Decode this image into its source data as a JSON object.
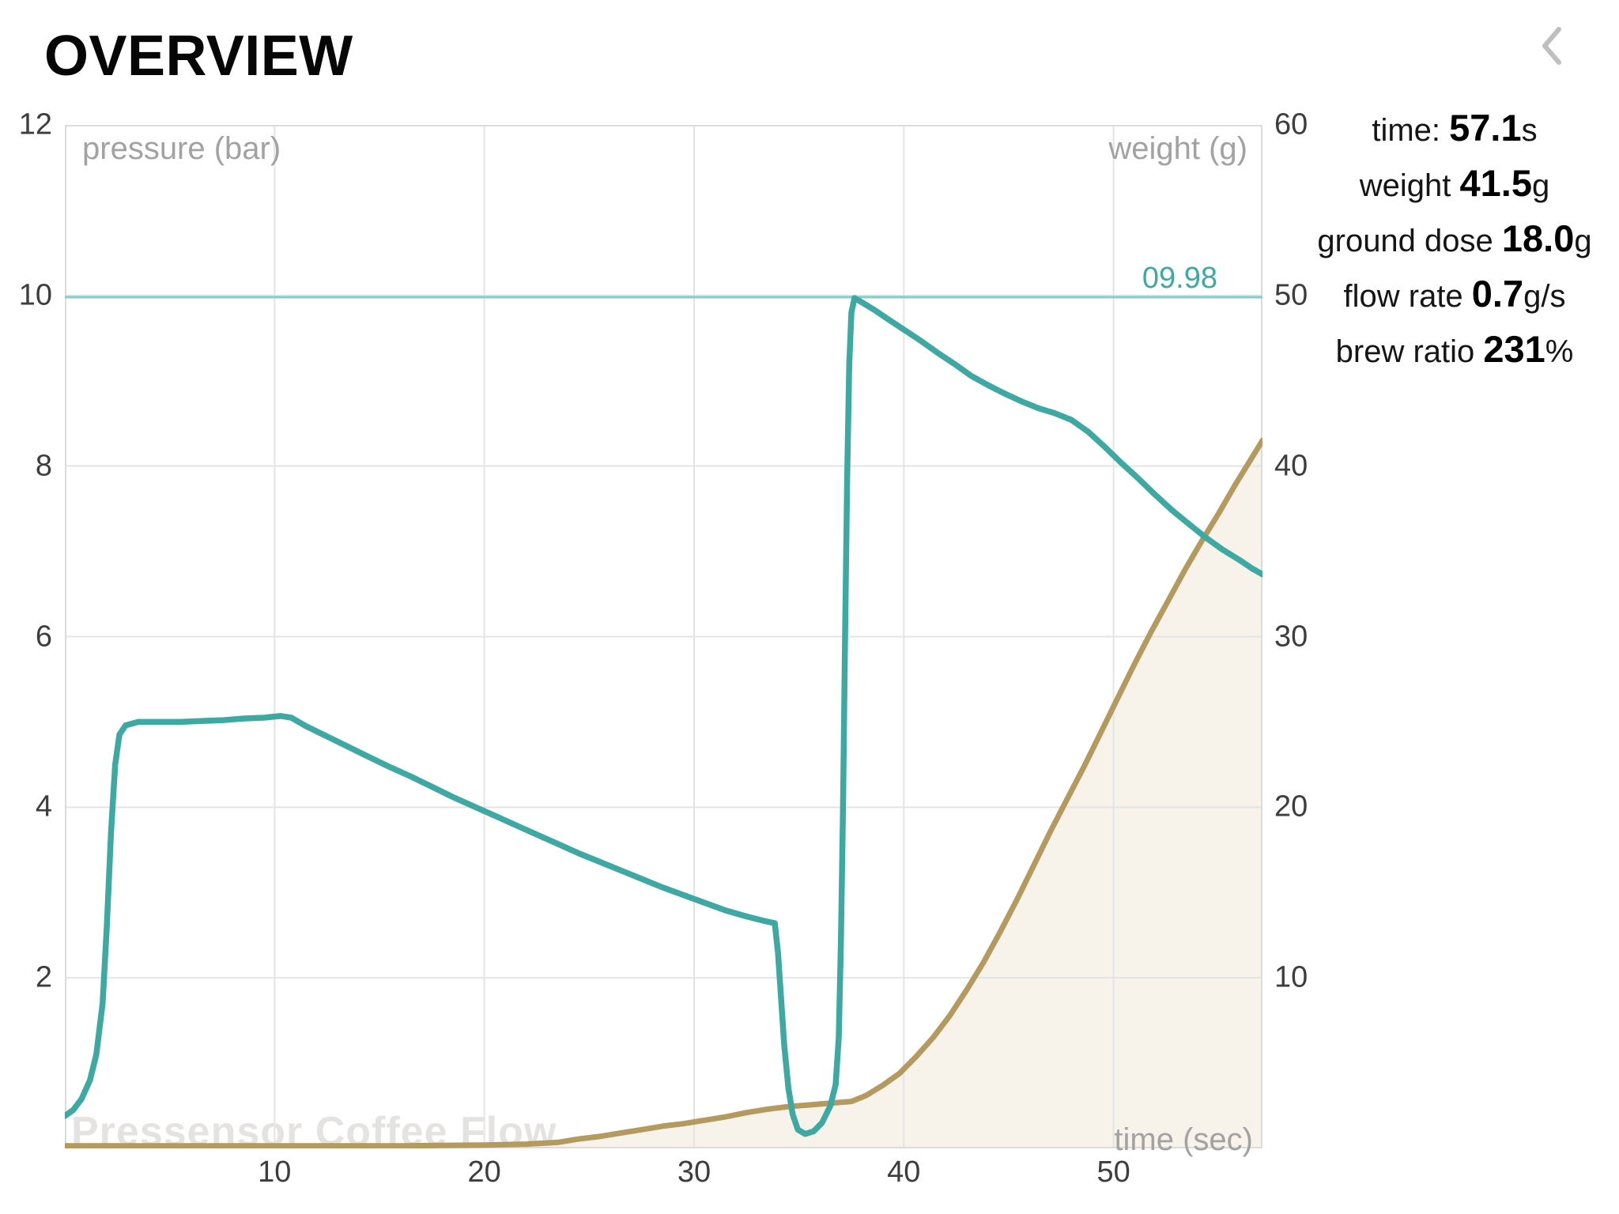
{
  "header": {
    "title": "OVERVIEW",
    "back_icon": "chevron-left"
  },
  "stats": {
    "lines": [
      {
        "label": "time: ",
        "value": "57.1",
        "unit": "s"
      },
      {
        "label": "weight ",
        "value": "41.5",
        "unit": "g"
      },
      {
        "label": "ground dose ",
        "value": "18.0",
        "unit": "g"
      },
      {
        "label": "flow rate ",
        "value": "0.7",
        "unit": "g/s"
      },
      {
        "label": "brew ratio ",
        "value": "231",
        "unit": "%"
      }
    ]
  },
  "chart_data": {
    "type": "line",
    "watermark": "Pressensor Coffee Flow",
    "x_axis": {
      "title": "time (sec)",
      "min": 0,
      "max": 57.1,
      "ticks": [
        10,
        20,
        30,
        40,
        50
      ]
    },
    "y_left": {
      "title": "pressure (bar)",
      "min": 0,
      "max": 12,
      "ticks": [
        12,
        10,
        8,
        6,
        4,
        2
      ]
    },
    "y_right": {
      "title": "weight (g)",
      "min": 0,
      "max": 60,
      "ticks": [
        60,
        50,
        40,
        30,
        20,
        10
      ]
    },
    "reference_line": {
      "axis": "left",
      "value": 9.98,
      "label": "09.98",
      "color": "#84CDC9",
      "label_color": "#3EA9A3"
    },
    "grid_color": "#E4E4E4",
    "border_color": "#DBDBDB",
    "series": [
      {
        "name": "pressure",
        "axis": "left",
        "color": "#3EA9A3",
        "points": [
          [
            0,
            0.38
          ],
          [
            0.4,
            0.45
          ],
          [
            0.8,
            0.58
          ],
          [
            1.2,
            0.8
          ],
          [
            1.5,
            1.1
          ],
          [
            1.8,
            1.7
          ],
          [
            2.0,
            2.6
          ],
          [
            2.2,
            3.7
          ],
          [
            2.4,
            4.5
          ],
          [
            2.6,
            4.85
          ],
          [
            2.9,
            4.96
          ],
          [
            3.5,
            5.0
          ],
          [
            4.5,
            5.0
          ],
          [
            5.5,
            5.0
          ],
          [
            6.5,
            5.01
          ],
          [
            7.5,
            5.02
          ],
          [
            8.5,
            5.04
          ],
          [
            9.5,
            5.05
          ],
          [
            10.3,
            5.07
          ],
          [
            10.8,
            5.05
          ],
          [
            11.5,
            4.95
          ],
          [
            12.5,
            4.83
          ],
          [
            13.5,
            4.71
          ],
          [
            14.5,
            4.59
          ],
          [
            15.5,
            4.47
          ],
          [
            16.5,
            4.36
          ],
          [
            17.5,
            4.24
          ],
          [
            18.5,
            4.12
          ],
          [
            19.5,
            4.01
          ],
          [
            20.5,
            3.9
          ],
          [
            21.5,
            3.79
          ],
          [
            22.5,
            3.68
          ],
          [
            23.5,
            3.57
          ],
          [
            24.5,
            3.46
          ],
          [
            25.5,
            3.36
          ],
          [
            26.5,
            3.26
          ],
          [
            27.5,
            3.16
          ],
          [
            28.5,
            3.06
          ],
          [
            29.5,
            2.97
          ],
          [
            30.5,
            2.88
          ],
          [
            31.5,
            2.79
          ],
          [
            32.5,
            2.72
          ],
          [
            33.3,
            2.67
          ],
          [
            33.85,
            2.64
          ],
          [
            34.0,
            2.3
          ],
          [
            34.15,
            1.75
          ],
          [
            34.3,
            1.2
          ],
          [
            34.5,
            0.7
          ],
          [
            34.7,
            0.4
          ],
          [
            34.95,
            0.22
          ],
          [
            35.3,
            0.17
          ],
          [
            35.7,
            0.2
          ],
          [
            36.1,
            0.3
          ],
          [
            36.5,
            0.5
          ],
          [
            36.75,
            0.75
          ],
          [
            36.9,
            1.3
          ],
          [
            37.0,
            2.4
          ],
          [
            37.1,
            4.0
          ],
          [
            37.2,
            6.0
          ],
          [
            37.3,
            7.9
          ],
          [
            37.4,
            9.2
          ],
          [
            37.5,
            9.8
          ],
          [
            37.65,
            9.97
          ],
          [
            38.0,
            9.92
          ],
          [
            38.6,
            9.83
          ],
          [
            39.2,
            9.73
          ],
          [
            40.0,
            9.6
          ],
          [
            40.8,
            9.47
          ],
          [
            41.6,
            9.33
          ],
          [
            42.4,
            9.2
          ],
          [
            43.2,
            9.06
          ],
          [
            44.0,
            8.95
          ],
          [
            44.8,
            8.85
          ],
          [
            45.6,
            8.76
          ],
          [
            46.4,
            8.68
          ],
          [
            47.2,
            8.62
          ],
          [
            48.0,
            8.54
          ],
          [
            48.8,
            8.4
          ],
          [
            49.6,
            8.22
          ],
          [
            50.4,
            8.03
          ],
          [
            51.2,
            7.85
          ],
          [
            52.0,
            7.66
          ],
          [
            52.8,
            7.48
          ],
          [
            53.6,
            7.32
          ],
          [
            54.4,
            7.16
          ],
          [
            55.2,
            7.02
          ],
          [
            56.0,
            6.9
          ],
          [
            56.6,
            6.8
          ],
          [
            57.1,
            6.73
          ]
        ]
      },
      {
        "name": "weight",
        "axis": "right",
        "color": "#B49A5F",
        "fill": "#F7F3EA",
        "points": [
          [
            0,
            0.15
          ],
          [
            4,
            0.15
          ],
          [
            8,
            0.15
          ],
          [
            12,
            0.15
          ],
          [
            16,
            0.15
          ],
          [
            20,
            0.2
          ],
          [
            22,
            0.25
          ],
          [
            23.5,
            0.35
          ],
          [
            24.5,
            0.55
          ],
          [
            25.5,
            0.7
          ],
          [
            26.5,
            0.9
          ],
          [
            27.5,
            1.1
          ],
          [
            28.5,
            1.3
          ],
          [
            29.5,
            1.45
          ],
          [
            30.5,
            1.65
          ],
          [
            31.5,
            1.85
          ],
          [
            32.5,
            2.1
          ],
          [
            33.5,
            2.3
          ],
          [
            34.5,
            2.45
          ],
          [
            35.5,
            2.55
          ],
          [
            36.5,
            2.65
          ],
          [
            37.5,
            2.75
          ],
          [
            38.2,
            3.1
          ],
          [
            39,
            3.7
          ],
          [
            39.8,
            4.4
          ],
          [
            40.6,
            5.4
          ],
          [
            41.4,
            6.5
          ],
          [
            42.2,
            7.8
          ],
          [
            43,
            9.3
          ],
          [
            43.8,
            10.9
          ],
          [
            44.6,
            12.7
          ],
          [
            45.4,
            14.6
          ],
          [
            46.2,
            16.6
          ],
          [
            47,
            18.6
          ],
          [
            47.8,
            20.5
          ],
          [
            48.6,
            22.4
          ],
          [
            49.4,
            24.4
          ],
          [
            50.2,
            26.4
          ],
          [
            51,
            28.4
          ],
          [
            51.8,
            30.3
          ],
          [
            52.6,
            32.1
          ],
          [
            53.4,
            33.9
          ],
          [
            54.2,
            35.6
          ],
          [
            55,
            37.2
          ],
          [
            55.8,
            38.9
          ],
          [
            56.5,
            40.3
          ],
          [
            57.1,
            41.5
          ]
        ]
      }
    ]
  }
}
